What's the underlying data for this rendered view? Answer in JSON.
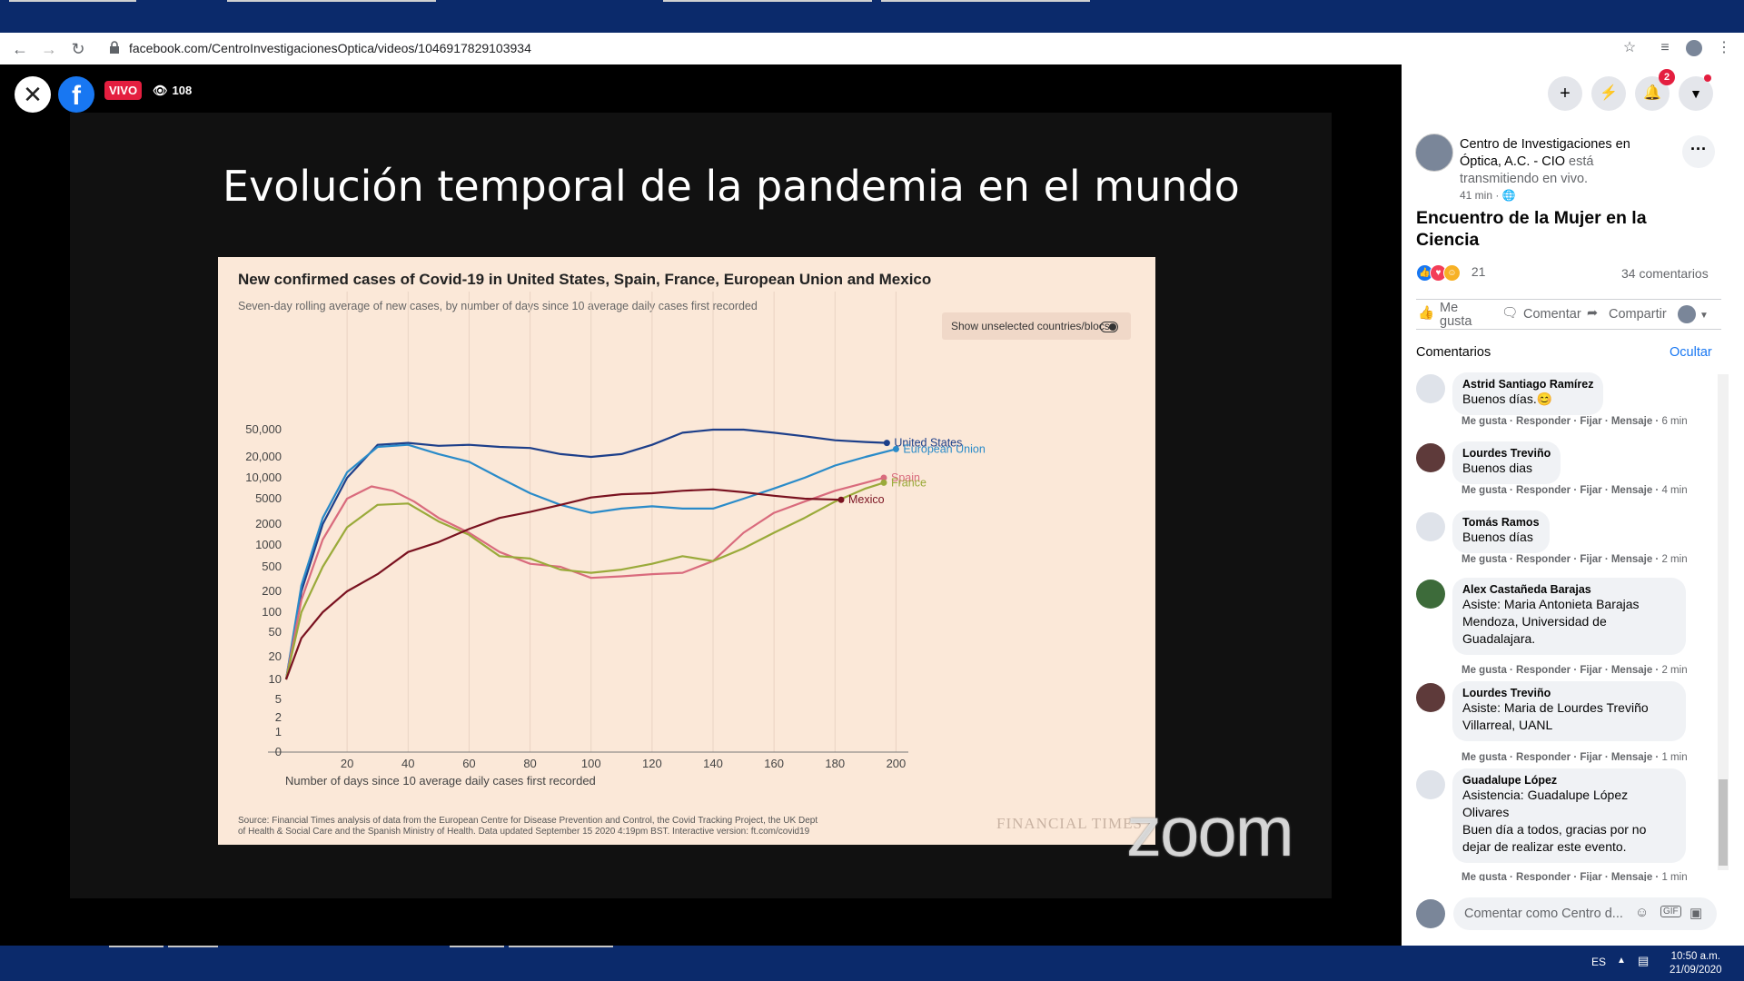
{
  "browser": {
    "url": "facebook.com/CentroInvestigacionesOptica/videos/1046917829103934"
  },
  "live": {
    "badge": "VIVO",
    "viewers": "108"
  },
  "slide": {
    "title": "Evolución temporal de la pandemia en el mundo",
    "watermark": "zoom"
  },
  "chart_data": {
    "type": "line",
    "title": "New confirmed cases of Covid-19 in United States, Spain, France, European Union and Mexico",
    "subtitle": "Seven-day rolling average of new cases, by number of days since 10 average daily cases first recorded",
    "toggle_label": "Show unselected countries/blocs",
    "xlabel": "Number of days since 10 average daily cases first recorded",
    "xlim": [
      0,
      210
    ],
    "x_ticks": [
      "20",
      "40",
      "60",
      "80",
      "100",
      "120",
      "140",
      "160",
      "180",
      "200"
    ],
    "y_scale": "log",
    "y_ticks": [
      "0",
      "1",
      "2",
      "5",
      "10",
      "20",
      "50",
      "100",
      "200",
      "500",
      "1000",
      "2000",
      "5000",
      "10,000",
      "20,000",
      "50,000"
    ],
    "series": [
      {
        "name": "United States",
        "color": "#1d3f8a",
        "points": [
          [
            0,
            10
          ],
          [
            5,
            200
          ],
          [
            12,
            2000
          ],
          [
            20,
            10000
          ],
          [
            30,
            30000
          ],
          [
            40,
            32000
          ],
          [
            50,
            29000
          ],
          [
            60,
            30000
          ],
          [
            70,
            28000
          ],
          [
            80,
            27000
          ],
          [
            90,
            22000
          ],
          [
            100,
            20000
          ],
          [
            110,
            22000
          ],
          [
            120,
            30000
          ],
          [
            130,
            45000
          ],
          [
            140,
            58000
          ],
          [
            150,
            55000
          ],
          [
            160,
            45000
          ],
          [
            170,
            40000
          ],
          [
            180,
            35000
          ],
          [
            190,
            33000
          ],
          [
            197,
            32000
          ]
        ]
      },
      {
        "name": "European Union",
        "color": "#2a8bc9",
        "points": [
          [
            0,
            10
          ],
          [
            5,
            250
          ],
          [
            12,
            2500
          ],
          [
            20,
            12000
          ],
          [
            30,
            28000
          ],
          [
            40,
            30000
          ],
          [
            50,
            22000
          ],
          [
            60,
            17000
          ],
          [
            70,
            10000
          ],
          [
            80,
            6000
          ],
          [
            90,
            4000
          ],
          [
            100,
            3000
          ],
          [
            110,
            3500
          ],
          [
            120,
            3800
          ],
          [
            130,
            3500
          ],
          [
            140,
            3500
          ],
          [
            150,
            5000
          ],
          [
            160,
            7000
          ],
          [
            170,
            10000
          ],
          [
            180,
            15000
          ],
          [
            190,
            20000
          ],
          [
            200,
            26000
          ]
        ]
      },
      {
        "name": "Spain",
        "color": "#d96b7d",
        "points": [
          [
            0,
            10
          ],
          [
            5,
            150
          ],
          [
            12,
            1200
          ],
          [
            20,
            5000
          ],
          [
            28,
            7500
          ],
          [
            35,
            6500
          ],
          [
            42,
            4500
          ],
          [
            50,
            2500
          ],
          [
            60,
            1500
          ],
          [
            70,
            800
          ],
          [
            80,
            550
          ],
          [
            90,
            500
          ],
          [
            100,
            330
          ],
          [
            110,
            350
          ],
          [
            120,
            380
          ],
          [
            130,
            400
          ],
          [
            140,
            600
          ],
          [
            150,
            1500
          ],
          [
            160,
            3000
          ],
          [
            170,
            4500
          ],
          [
            180,
            6500
          ],
          [
            190,
            8500
          ],
          [
            196,
            10000
          ]
        ]
      },
      {
        "name": "France",
        "color": "#9aaa3a",
        "points": [
          [
            0,
            10
          ],
          [
            5,
            100
          ],
          [
            12,
            500
          ],
          [
            20,
            1800
          ],
          [
            30,
            4000
          ],
          [
            40,
            4200
          ],
          [
            50,
            2200
          ],
          [
            60,
            1400
          ],
          [
            70,
            700
          ],
          [
            80,
            650
          ],
          [
            90,
            450
          ],
          [
            100,
            400
          ],
          [
            110,
            450
          ],
          [
            120,
            550
          ],
          [
            130,
            700
          ],
          [
            140,
            600
          ],
          [
            150,
            900
          ],
          [
            160,
            1500
          ],
          [
            170,
            2500
          ],
          [
            180,
            4500
          ],
          [
            190,
            7000
          ],
          [
            196,
            8500
          ]
        ]
      },
      {
        "name": "Mexico",
        "color": "#7a1220",
        "points": [
          [
            0,
            10
          ],
          [
            5,
            40
          ],
          [
            12,
            100
          ],
          [
            20,
            200
          ],
          [
            30,
            380
          ],
          [
            40,
            800
          ],
          [
            50,
            1100
          ],
          [
            60,
            1700
          ],
          [
            70,
            2500
          ],
          [
            80,
            3100
          ],
          [
            90,
            4000
          ],
          [
            100,
            5200
          ],
          [
            110,
            5800
          ],
          [
            120,
            6000
          ],
          [
            130,
            6500
          ],
          [
            140,
            6800
          ],
          [
            150,
            6200
          ],
          [
            160,
            5500
          ],
          [
            170,
            5000
          ],
          [
            182,
            4800
          ]
        ]
      }
    ],
    "source": "Source: Financial Times analysis of data from the European Centre for Disease Prevention and Control, the Covid Tracking Project, the UK Dept of Health & Social Care and the Spanish Ministry of Health. Data updated September 15 2020 4:19pm BST. Interactive version: ft.com/covid19",
    "credit": "FINANCIAL TIMES"
  },
  "sidebar": {
    "notif_count": "2",
    "page_name": "Centro de Investigaciones en Óptica, A.C. - CIO",
    "page_suffix": " está transmitiendo en vivo.",
    "post_time": "41 min · 🌐",
    "event_title": "Encuentro de la Mujer en la Ciencia",
    "reactions_count": "21",
    "comments_count": "34 comentarios",
    "actions": {
      "like": "Me gusta",
      "comment": "Comentar",
      "share": "Compartir"
    },
    "comments_heading": "Comentarios",
    "hide_label": "Ocultar",
    "comments": [
      {
        "name": "Astrid Santiago Ramírez",
        "text": "Buenos días.😊",
        "time": "6 min"
      },
      {
        "name": "Lourdes Treviño",
        "text": "Buenos dias",
        "time": "4 min"
      },
      {
        "name": "Tomás Ramos",
        "text": "Buenos días",
        "time": "2 min"
      },
      {
        "name": "Alex Castañeda Barajas",
        "text": "Asiste: Maria Antonieta Barajas Mendoza, Universidad de Guadalajara.",
        "time": "2 min"
      },
      {
        "name": "Lourdes Treviño",
        "text": "Asiste: Maria de Lourdes Treviño Villarreal, UANL",
        "time": "1 min"
      },
      {
        "name": "Guadalupe López",
        "text": "Asistencia: Guadalupe López Olivares\nBuen día a todos, gracias por no dejar de realizar este evento.",
        "time": "1 min"
      }
    ],
    "comment_actions": "Me gusta · Responder · Fijar · Mensaje · ",
    "comment_placeholder": "Comentar como Centro d..."
  },
  "taskbar": {
    "lang": "ES",
    "time": "10:50 a.m.",
    "date": "21/09/2020"
  }
}
